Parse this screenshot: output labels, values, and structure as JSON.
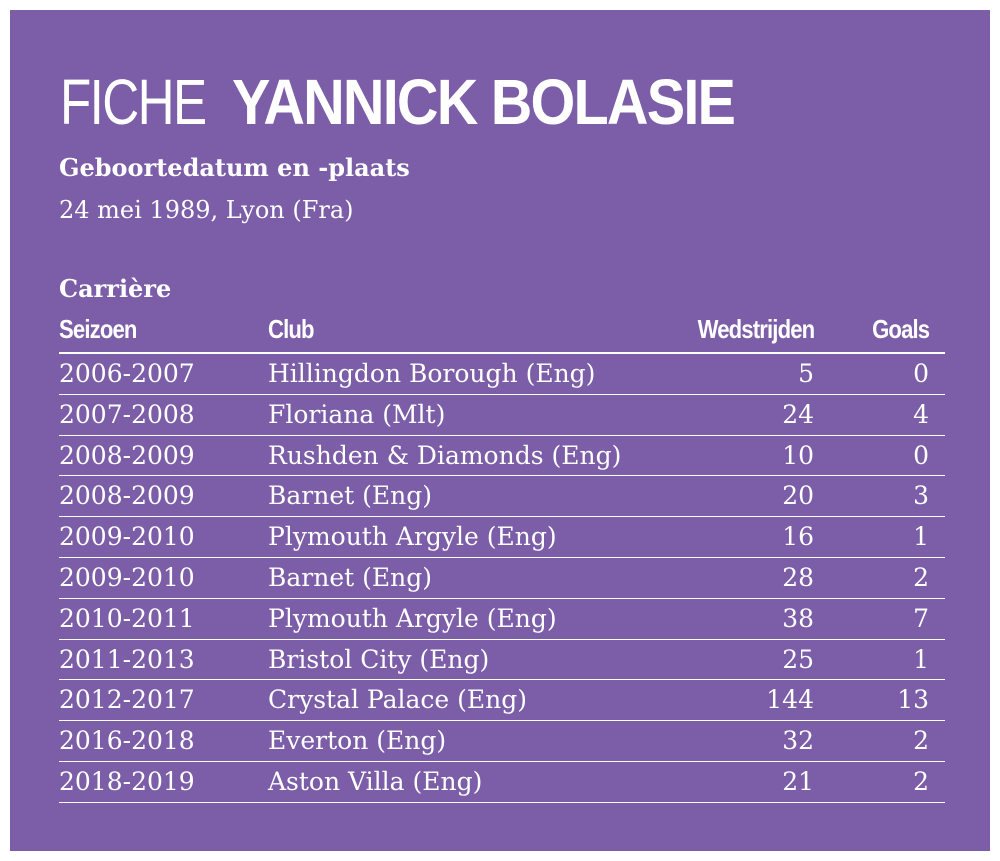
{
  "title": {
    "prefix": "FICHE",
    "name": "YANNICK BOLASIE"
  },
  "birth": {
    "label": "Geboortedatum en -plaats",
    "value": "24 mei 1989, Lyon (Fra)"
  },
  "career": {
    "label": "Carrière",
    "headers": {
      "season": "Seizoen",
      "club": "Club",
      "matches": "Wedstrijden",
      "goals": "Goals"
    },
    "rows": [
      {
        "season": "2006-2007",
        "club": "Hillingdon Borough (Eng)",
        "matches": "5",
        "goals": "0"
      },
      {
        "season": "2007-2008",
        "club": "Floriana (Mlt)",
        "matches": "24",
        "goals": "4"
      },
      {
        "season": "2008-2009",
        "club": "Rushden & Diamonds (Eng)",
        "matches": "10",
        "goals": "0"
      },
      {
        "season": "2008-2009",
        "club": "Barnet (Eng)",
        "matches": "20",
        "goals": "3"
      },
      {
        "season": "2009-2010",
        "club": "Plymouth Argyle (Eng)",
        "matches": "16",
        "goals": "1"
      },
      {
        "season": "2009-2010",
        "club": "Barnet (Eng)",
        "matches": "28",
        "goals": "2"
      },
      {
        "season": "2010-2011",
        "club": "Plymouth Argyle (Eng)",
        "matches": "38",
        "goals": "7"
      },
      {
        "season": "2011-2013",
        "club": "Bristol City (Eng)",
        "matches": "25",
        "goals": "1"
      },
      {
        "season": "2012-2017",
        "club": "Crystal Palace (Eng)",
        "matches": "144",
        "goals": "13"
      },
      {
        "season": "2016-2018",
        "club": "Everton (Eng)",
        "matches": "32",
        "goals": "2"
      },
      {
        "season": "2018-2019",
        "club": "Aston Villa (Eng)",
        "matches": "21",
        "goals": "2"
      }
    ]
  },
  "colors": {
    "background": "#7b5ea7",
    "text": "#ffffff"
  }
}
